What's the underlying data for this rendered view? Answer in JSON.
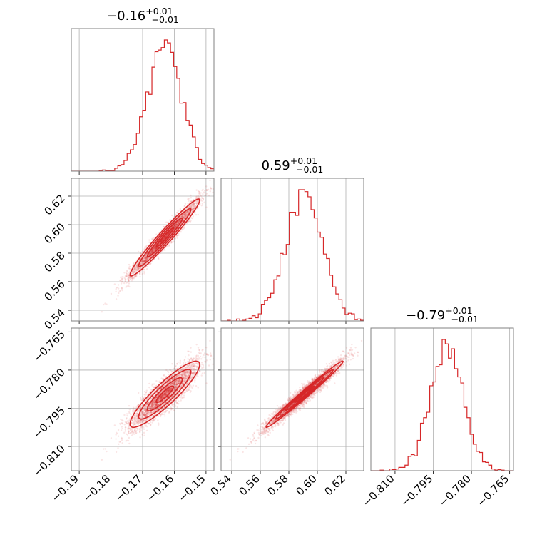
{
  "chart_data": {
    "type": "corner",
    "params": [
      {
        "id": "p0",
        "median": -0.163,
        "sigma": 0.0055,
        "range": [
          -0.1925,
          -0.1475
        ],
        "ticks": [
          -0.19,
          -0.18,
          -0.17,
          -0.16,
          -0.15
        ],
        "tick_labels": [
          "−0.19",
          "−0.18",
          "−0.17",
          "−0.16",
          "−0.15"
        ],
        "title": {
          "value": "−0.16",
          "plus": "+0.01",
          "minus": "−0.01"
        }
      },
      {
        "id": "p1",
        "median": 0.591,
        "sigma": 0.0135,
        "range": [
          0.5325,
          0.6325
        ],
        "ticks": [
          0.54,
          0.56,
          0.58,
          0.6,
          0.62
        ],
        "tick_labels": [
          "0.54",
          "0.56",
          "0.58",
          "0.60",
          "0.62"
        ],
        "title": {
          "value": "0.59",
          "plus": "+0.01",
          "minus": "−0.01"
        }
      },
      {
        "id": "p2",
        "median": -0.7895,
        "sigma": 0.0065,
        "range": [
          -0.8195,
          -0.7635
        ],
        "ticks": [
          -0.81,
          -0.795,
          -0.78,
          -0.765
        ],
        "tick_labels": [
          "−0.810",
          "−0.795",
          "−0.780",
          "−0.765"
        ],
        "title": {
          "value": "−0.79",
          "plus": "+0.01",
          "minus": "−0.01"
        }
      }
    ],
    "correlations": {
      "p0_p1": 0.97,
      "p0_p2": 0.9,
      "p1_p2": 0.99
    },
    "diagonal": "histogram (step)",
    "off_diagonal": "scatter points with density contours",
    "color": "#d62728",
    "grid": true
  }
}
